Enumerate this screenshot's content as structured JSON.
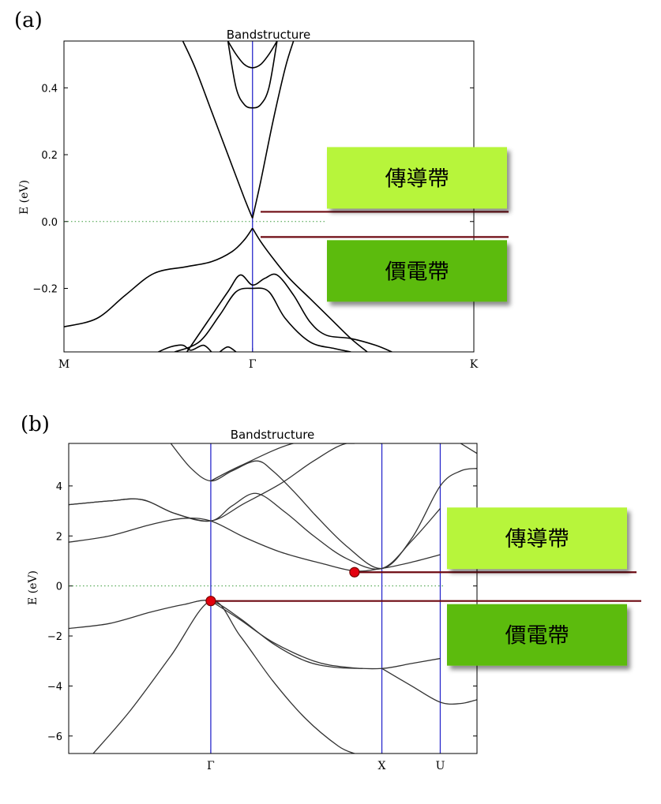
{
  "chart_data": [
    {
      "panel_label": "(a)",
      "type": "line",
      "title": "Bandstructure",
      "ylabel": "E (eV)",
      "ylim": [
        -0.39,
        0.54
      ],
      "yticks": [
        0.4,
        0.2,
        0.0,
        -0.2
      ],
      "ytick_labels": [
        "0.4",
        "0.2",
        "0.0",
        "−0.2"
      ],
      "xticks": [
        {
          "label": "M",
          "x": 0
        },
        {
          "label": "Γ",
          "x": 0.46
        },
        {
          "label": "K",
          "x": 1
        }
      ],
      "xlim": [
        0,
        1
      ],
      "fermi_level": 0.0,
      "high_symmetry_lines": [
        0.46
      ],
      "bands": [
        {
          "x": [
            0,
            0.08,
            0.15,
            0.22,
            0.3,
            0.36,
            0.41,
            0.44,
            0.46
          ],
          "y": [
            -0.315,
            -0.29,
            -0.22,
            -0.155,
            -0.135,
            -0.12,
            -0.09,
            -0.055,
            -0.02
          ]
        },
        {
          "x": [
            0.46,
            0.48,
            0.51,
            0.55,
            0.6,
            0.65,
            0.7,
            0.74
          ],
          "y": [
            -0.02,
            -0.06,
            -0.11,
            -0.17,
            -0.23,
            -0.29,
            -0.35,
            -0.39
          ]
        },
        {
          "x": [
            0.29,
            0.32,
            0.36,
            0.4,
            0.44,
            0.46
          ],
          "y": [
            0.54,
            0.46,
            0.33,
            0.2,
            0.07,
            0.01
          ]
        },
        {
          "x": [
            0.46,
            0.48,
            0.51,
            0.54,
            0.56
          ],
          "y": [
            0.01,
            0.12,
            0.3,
            0.46,
            0.54
          ]
        },
        {
          "x": [
            0.4,
            0.42,
            0.44,
            0.46,
            0.48,
            0.5,
            0.52
          ],
          "y": [
            0.54,
            0.4,
            0.35,
            0.34,
            0.35,
            0.4,
            0.54
          ]
        },
        {
          "x": [
            0.4,
            0.42,
            0.44,
            0.46,
            0.48,
            0.5,
            0.52
          ],
          "y": [
            0.54,
            0.5,
            0.47,
            0.46,
            0.47,
            0.5,
            0.54
          ]
        },
        {
          "x": [
            0.27,
            0.33,
            0.38,
            0.42,
            0.46,
            0.5,
            0.54,
            0.6,
            0.66,
            0.7
          ],
          "y": [
            -0.39,
            -0.36,
            -0.28,
            -0.21,
            -0.2,
            -0.21,
            -0.29,
            -0.36,
            -0.38,
            -0.39
          ]
        },
        {
          "x": [
            0.3,
            0.35,
            0.4,
            0.43,
            0.46,
            0.49,
            0.52,
            0.56,
            0.6,
            0.64,
            0.7,
            0.76,
            0.8
          ],
          "y": [
            -0.39,
            -0.3,
            -0.21,
            -0.16,
            -0.19,
            -0.17,
            -0.16,
            -0.22,
            -0.3,
            -0.34,
            -0.35,
            -0.37,
            -0.39
          ]
        },
        {
          "x": [
            0.23,
            0.26,
            0.29,
            0.31,
            0.34,
            0.36
          ],
          "y": [
            -0.39,
            -0.375,
            -0.37,
            -0.385,
            -0.37,
            -0.39
          ]
        },
        {
          "x": [
            0.38,
            0.4,
            0.42
          ],
          "y": [
            -0.39,
            -0.375,
            -0.39
          ]
        }
      ],
      "annotations": [
        {
          "label": "傳導帶",
          "fill": "#b7f53a",
          "energy": 0.015
        },
        {
          "label": "價電帶",
          "fill": "#5cbb0c",
          "energy": -0.025
        }
      ]
    },
    {
      "panel_label": "(b)",
      "type": "line",
      "title": "Bandstructure",
      "ylabel": "E (eV)",
      "ylim": [
        -6.7,
        5.7
      ],
      "yticks": [
        4,
        2,
        0,
        -2,
        -4,
        -6
      ],
      "ytick_labels": [
        "4",
        "2",
        "0",
        "−2",
        "−4",
        "−6"
      ],
      "xticks": [
        {
          "label": "Γ",
          "x": 0.348
        },
        {
          "label": "X",
          "x": 0.767
        },
        {
          "label": "U",
          "x": 0.91
        }
      ],
      "xlim": [
        0,
        1
      ],
      "fermi_level": 0.0,
      "high_symmetry_lines": [
        0.348,
        0.767,
        0.91
      ],
      "bands": [
        {
          "x": [
            0,
            0.1,
            0.2,
            0.28,
            0.348,
            0.42,
            0.5,
            0.58,
            0.65,
            0.72
          ],
          "y": [
            -1.7,
            -1.5,
            -1.05,
            -0.75,
            -0.6,
            -1.3,
            -2.3,
            -3.0,
            -3.25,
            -3.3
          ]
        },
        {
          "x": [
            0.348,
            0.42,
            0.5,
            0.6,
            0.68,
            0.767,
            0.84,
            0.91
          ],
          "y": [
            -0.6,
            -1.35,
            -2.25,
            -3.0,
            -3.25,
            -3.3,
            -3.1,
            -2.9
          ]
        },
        {
          "x": [
            0.06,
            0.15,
            0.25,
            0.348,
            0.42,
            0.5,
            0.58,
            0.66,
            0.7
          ],
          "y": [
            -6.7,
            -5.0,
            -2.8,
            -0.6,
            -2.0,
            -3.8,
            -5.3,
            -6.4,
            -6.7
          ]
        },
        {
          "x": [
            0.767,
            0.84,
            0.91,
            0.96,
            1.0
          ],
          "y": [
            -3.3,
            -4.0,
            -4.65,
            -4.7,
            -4.55
          ]
        },
        {
          "x": [
            0,
            0.1,
            0.2,
            0.28,
            0.348,
            0.43,
            0.52,
            0.62,
            0.7,
            0.767,
            0.84,
            0.91
          ],
          "y": [
            1.75,
            2.0,
            2.45,
            2.7,
            2.6,
            1.95,
            1.35,
            0.9,
            0.6,
            0.7,
            0.95,
            1.25
          ]
        },
        {
          "x": [
            0,
            0.1,
            0.18,
            0.26,
            0.348,
            0.4,
            0.46,
            0.53,
            0.6,
            0.68,
            0.767,
            0.84,
            0.91
          ],
          "y": [
            3.25,
            3.4,
            3.45,
            2.9,
            2.6,
            3.2,
            3.7,
            2.95,
            2.0,
            1.1,
            0.7,
            1.8,
            3.1
          ]
        },
        {
          "x": [
            0,
            0.1,
            0.18,
            0.26,
            0.348,
            0.43,
            0.52,
            0.6,
            0.68,
            0.767
          ],
          "y": [
            3.25,
            3.4,
            3.45,
            2.9,
            2.6,
            3.3,
            4.1,
            5.0,
            5.7,
            5.7
          ]
        },
        {
          "x": [
            0.25,
            0.3,
            0.348,
            0.4,
            0.46,
            0.5,
            0.55,
            0.6
          ],
          "y": [
            5.7,
            4.7,
            4.2,
            4.6,
            5.0,
            4.6,
            3.8,
            2.9
          ]
        },
        {
          "x": [
            0.348,
            0.42,
            0.55,
            0.65,
            0.7
          ],
          "y": [
            4.2,
            4.8,
            5.7,
            5.7,
            5.7
          ]
        },
        {
          "x": [
            0.6,
            0.68,
            0.767,
            0.84,
            0.91,
            0.96,
            1.0
          ],
          "y": [
            2.9,
            1.6,
            0.7,
            1.9,
            4.0,
            4.6,
            4.7
          ]
        },
        {
          "x": [
            0.96,
            0.98,
            1.0
          ],
          "y": [
            5.7,
            5.5,
            5.3
          ]
        }
      ],
      "markers": [
        {
          "x": 0.348,
          "y": -0.6,
          "color": "#e3000f"
        },
        {
          "x": 0.7,
          "y": 0.55,
          "color": "#e3000f"
        }
      ],
      "annotations": [
        {
          "label": "傳導帶",
          "fill": "#b7f53a",
          "energy": 0.55
        },
        {
          "label": "價電帶",
          "fill": "#5cbb0c",
          "energy": -0.6
        }
      ]
    }
  ]
}
